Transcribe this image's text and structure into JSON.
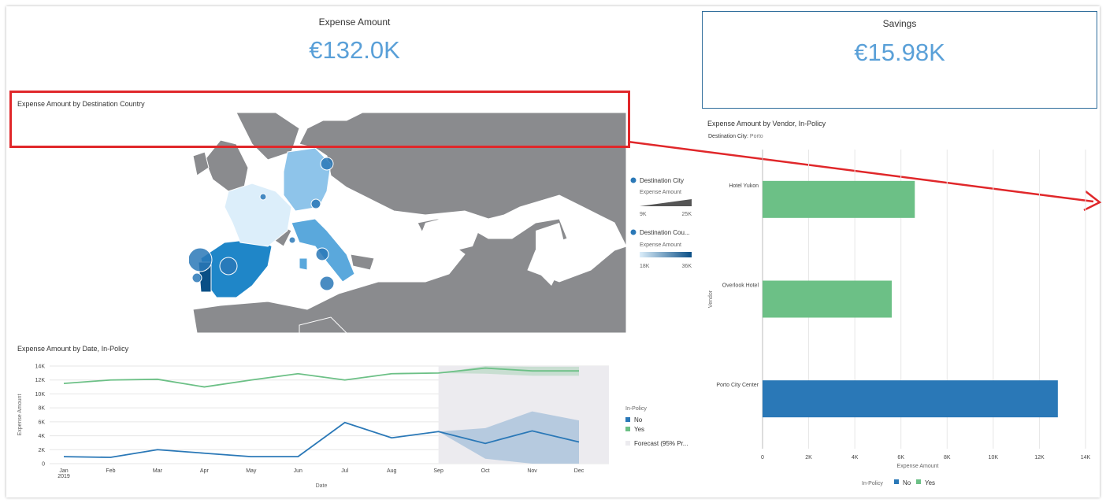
{
  "colors": {
    "accent_blue": "#5aa0d8",
    "no_series": "#2a78b7",
    "yes_series": "#6cc086",
    "highlight_red": "#e0272a",
    "map_land": "#8a8b8e"
  },
  "kpi_expense": {
    "title": "Expense Amount",
    "value": "€132.0K"
  },
  "kpi_savings": {
    "title": "Savings",
    "value": "€15.98K"
  },
  "map_panel": {
    "title": "Expense Amount by Destination Country",
    "legend": {
      "city_title": "Destination City",
      "city_sub": "Expense Amount",
      "city_min": "9K",
      "city_max": "25K",
      "country_title": "Destination Cou...",
      "country_sub": "Expense Amount",
      "country_min": "18K",
      "country_max": "36K"
    }
  },
  "line_panel": {
    "title": "Expense Amount by Date, In-Policy",
    "legend": {
      "title": "In-Policy",
      "no": "No",
      "yes": "Yes",
      "forecast": "Forecast (95% Pr..."
    }
  },
  "bar_panel": {
    "title": "Expense Amount by Vendor, In-Policy",
    "filter_label": "Destination City:",
    "filter_value": "Porto",
    "legend": {
      "title": "In-Policy",
      "no": "No",
      "yes": "Yes"
    }
  },
  "chart_data": [
    {
      "type": "line",
      "title": "Expense Amount by Date, In-Policy",
      "xlabel": "Date",
      "ylabel": "Expense Amount",
      "x": [
        "Jan",
        "Feb",
        "Mar",
        "Apr",
        "May",
        "Jun",
        "Jul",
        "Aug",
        "Sep",
        "Oct",
        "Nov",
        "Dec"
      ],
      "x_sublabel_first": "2019",
      "yticks": [
        "0",
        "2K",
        "4K",
        "6K",
        "8K",
        "10K",
        "12K",
        "14K"
      ],
      "ylim": [
        0,
        14000
      ],
      "forecast_start_index": 8,
      "series": [
        {
          "name": "Yes",
          "values": [
            11500,
            12000,
            12100,
            11000,
            12000,
            12900,
            12000,
            12900,
            13000,
            13700,
            13300,
            13300
          ],
          "band_low": [
            null,
            null,
            null,
            null,
            null,
            null,
            null,
            null,
            13000,
            12900,
            12600,
            12600
          ],
          "band_high": [
            null,
            null,
            null,
            null,
            null,
            null,
            null,
            null,
            13000,
            14000,
            13900,
            13900
          ]
        },
        {
          "name": "No",
          "values": [
            1000,
            900,
            2000,
            1500,
            1000,
            1000,
            5900,
            3700,
            4600,
            2900,
            4700,
            3100
          ],
          "band_low": [
            null,
            null,
            null,
            null,
            null,
            null,
            null,
            null,
            4600,
            700,
            0,
            0
          ],
          "band_high": [
            null,
            null,
            null,
            null,
            null,
            null,
            null,
            null,
            4600,
            5100,
            7500,
            6200
          ]
        }
      ]
    },
    {
      "type": "bar",
      "orientation": "horizontal",
      "title": "Expense Amount by Vendor, In-Policy",
      "subtitle": "Destination City: Porto",
      "xlabel": "Expense Amount",
      "ylabel": "Vendor",
      "categories": [
        "Hotel Yukon",
        "Overlook Hotel",
        "Porto City Center"
      ],
      "category_policy": [
        "Yes",
        "Yes",
        "No"
      ],
      "values": [
        6600,
        5600,
        12800
      ],
      "xticks": [
        "0",
        "2K",
        "4K",
        "6K",
        "8K",
        "10K",
        "12K",
        "14K"
      ],
      "xlim": [
        0,
        14000
      ]
    }
  ]
}
